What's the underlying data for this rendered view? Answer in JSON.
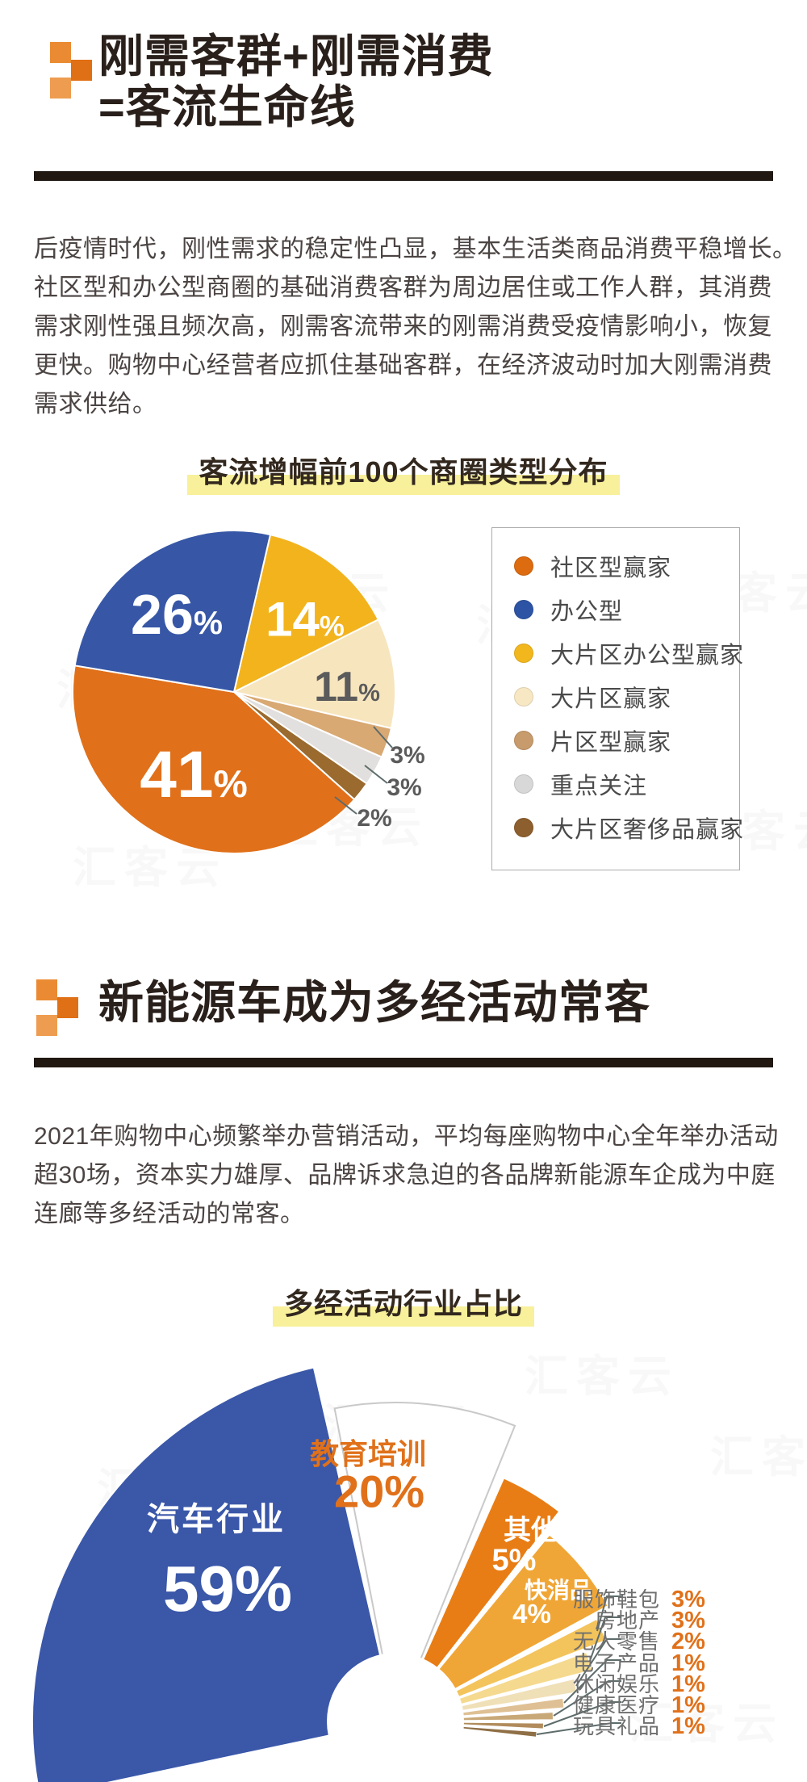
{
  "watermark": {
    "text": "汇客云"
  },
  "theme": {
    "accent_orange": "#E0711A",
    "highlight_yellow": "#F8F09B",
    "title_color": "#2A201B",
    "body_color": "#4B4443",
    "rule_color": "#201811"
  },
  "section1": {
    "title_line1": "刚需客群+刚需消费",
    "title_line2": "=客流生命线",
    "paragraph_lines": [
      "后疫情时代，刚性需求的稳定性凸显，基本生活类商品消费平稳增长。",
      "社区型和办公型商圈的基础消费客群为周边居住或工作人群，其消费",
      "需求刚性强且频次高，刚需客流带来的刚需消费受疫情影响小，恢复",
      "更快。购物中心经营者应抓住基础客群，在经济波动时加大刚需消费",
      "需求供给。"
    ],
    "chart_title": "客流增幅前100个商圈类型分布"
  },
  "section2": {
    "title": "新能源车成为多经活动常客",
    "paragraph_lines": [
      "2021年购物中心频繁举办营销活动，平均每座购物中心全年举办活动",
      "超30场，资本实力雄厚、品牌诉求急迫的各品牌新能源车企成为中庭",
      "连廊等多经活动的常客。"
    ],
    "chart_title": "多经活动行业占比"
  },
  "chart_data": [
    {
      "type": "pie",
      "title": "客流增幅前100个商圈类型分布",
      "start_angle_deg": 13,
      "slices": [
        {
          "label": "大片区办公型赢家",
          "value": 14,
          "unit": "%",
          "color": "#F2B31D"
        },
        {
          "label": "大片区赢家",
          "value": 11,
          "unit": "%",
          "color": "#F7E5BE"
        },
        {
          "label": "片区型赢家",
          "value": 3,
          "unit": "%",
          "color": "#D8A973"
        },
        {
          "label": "重点关注",
          "value": 3,
          "unit": "%",
          "color": "#E2E0DE"
        },
        {
          "label": "大片区奢侈品赢家",
          "value": 2,
          "unit": "%",
          "color": "#9A6A2E"
        },
        {
          "label": "社区型赢家",
          "value": 41,
          "unit": "%",
          "color": "#E0701A"
        },
        {
          "label": "办公型",
          "value": 26,
          "unit": "%",
          "color": "#3757A6"
        }
      ],
      "legend": [
        {
          "label": "社区型赢家",
          "color": "#DD6B10"
        },
        {
          "label": "办公型",
          "color": "#2D53A5"
        },
        {
          "label": "大片区办公型赢家",
          "color": "#F3B71E"
        },
        {
          "label": "大片区赢家",
          "color": "#F7E7C3"
        },
        {
          "label": "片区型赢家",
          "color": "#C79B6B"
        },
        {
          "label": "重点关注",
          "color": "#D8D8D8"
        },
        {
          "label": "大片区奢侈品赢家",
          "color": "#8E5F2E"
        }
      ]
    },
    {
      "type": "fan",
      "title": "多经活动行业占比",
      "sectors": [
        {
          "label": "汽车行业",
          "pct": 59,
          "unit": "%",
          "color": "#3A57A8",
          "r": 450,
          "a0": 258,
          "a1": 347
        },
        {
          "label": "教育培训",
          "pct": 20,
          "unit": "%",
          "color": "#FFFFFF",
          "r": 395,
          "a0": 349,
          "a1": 382
        },
        {
          "label": "其他",
          "pct": 5,
          "unit": "%",
          "color": "#E87D15",
          "r": 330,
          "a0": 384,
          "a1": 398
        },
        {
          "label": "快消品",
          "pct": 4,
          "unit": "%",
          "color": "#F0A636",
          "r": 300,
          "a0": 399.5,
          "a1": 421.5
        },
        {
          "label": "服饰鞋包",
          "pct": 3,
          "unit": "%",
          "color": "#F3C45C",
          "r": 280,
          "a0": 63,
          "a1": 69
        },
        {
          "label": "房地产",
          "pct": 3,
          "unit": "%",
          "color": "#F5D98E",
          "r": 252,
          "a0": 70,
          "a1": 75.5
        },
        {
          "label": "无人零售",
          "pct": 2,
          "unit": "%",
          "color": "#F0E0B8",
          "r": 228,
          "a0": 76.5,
          "a1": 81
        },
        {
          "label": "电子产品",
          "pct": 1,
          "unit": "%",
          "color": "#DFC094",
          "r": 210,
          "a0": 82,
          "a1": 85.5
        },
        {
          "label": "休闲娱乐",
          "pct": 1,
          "unit": "%",
          "color": "#C9A878",
          "r": 196,
          "a0": 86.5,
          "a1": 89.5
        },
        {
          "label": "健康医疗",
          "pct": 1,
          "unit": "%",
          "color": "#B18B5B",
          "r": 184,
          "a0": 90.5,
          "a1": 93
        },
        {
          "label": "玩具礼品",
          "pct": 1,
          "unit": "%",
          "color": "#8F6F45",
          "r": 176,
          "a0": 94,
          "a1": 96.5
        }
      ]
    }
  ]
}
